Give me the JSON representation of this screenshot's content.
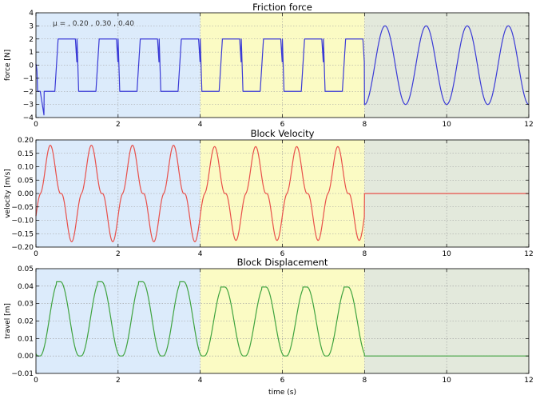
{
  "chart_data": [
    {
      "type": "line",
      "title": "Friction force",
      "xlabel": "",
      "ylabel": "force [N]",
      "xlim": [
        0,
        12
      ],
      "ylim": [
        -4,
        4
      ],
      "xticks": [
        "0",
        "2",
        "4",
        "6",
        "8",
        "10",
        "12"
      ],
      "yticks": [
        "−4",
        "−3",
        "−2",
        "−1",
        "0",
        "1",
        "2",
        "3",
        "4"
      ],
      "grid": true,
      "annotation": "μ = , 0.20 , 0.30 , 0.40",
      "regions": [
        {
          "x": [
            0,
            4
          ],
          "color": "#dcebfb"
        },
        {
          "x": [
            4,
            8
          ],
          "color": "#fbfbc4"
        },
        {
          "x": [
            8,
            12
          ],
          "color": "#e3e9dc"
        }
      ],
      "series": [
        {
          "color": "#3a3ad6",
          "kind": "friction",
          "amp": [
            2.0,
            2.0,
            3.0
          ],
          "period": 1.0
        }
      ]
    },
    {
      "type": "line",
      "title": "Block Velocity",
      "xlabel": "",
      "ylabel": "velocity [m/s]",
      "xlim": [
        0,
        12
      ],
      "ylim": [
        -0.2,
        0.2
      ],
      "xticks": [
        "0",
        "2",
        "4",
        "6",
        "8",
        "10",
        "12"
      ],
      "yticks": [
        "−0.20",
        "−0.15",
        "−0.10",
        "−0.05",
        "0.00",
        "0.05",
        "0.10",
        "0.15",
        "0.20"
      ],
      "grid": true,
      "regions": [
        {
          "x": [
            0,
            4
          ],
          "color": "#dcebfb"
        },
        {
          "x": [
            4,
            8
          ],
          "color": "#fbfbc4"
        },
        {
          "x": [
            8,
            12
          ],
          "color": "#e3e9dc"
        }
      ],
      "series": [
        {
          "color": "#e8504a",
          "kind": "velocity",
          "amp": [
            0.18,
            0.175,
            0.0
          ],
          "period": 1.0
        }
      ]
    },
    {
      "type": "line",
      "title": "Block Displacement",
      "xlabel": "time (s)",
      "ylabel": "travel [m]",
      "xlim": [
        0,
        12
      ],
      "ylim": [
        -0.01,
        0.05
      ],
      "xticks": [
        "0",
        "2",
        "4",
        "6",
        "8",
        "10",
        "12"
      ],
      "yticks": [
        "−0.01",
        "0.00",
        "0.01",
        "0.02",
        "0.03",
        "0.04",
        "0.05"
      ],
      "grid": true,
      "regions": [
        {
          "x": [
            0,
            4
          ],
          "color": "#dcebfb"
        },
        {
          "x": [
            4,
            8
          ],
          "color": "#fbfbc4"
        },
        {
          "x": [
            8,
            12
          ],
          "color": "#e3e9dc"
        }
      ],
      "series": [
        {
          "color": "#3fa33f",
          "kind": "displacement",
          "amp": [
            0.0425,
            0.0395,
            0.0
          ],
          "period": 1.0
        }
      ]
    }
  ]
}
